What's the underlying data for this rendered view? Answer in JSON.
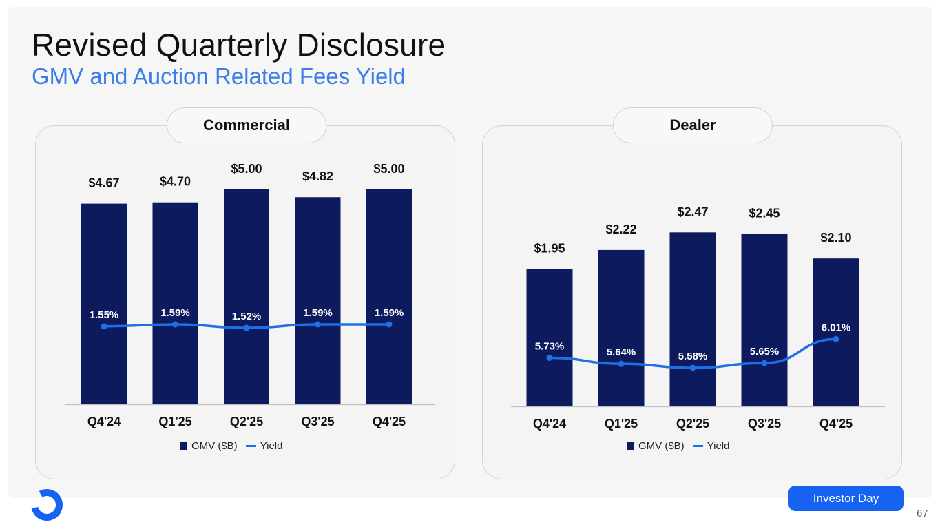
{
  "header": {
    "title": "Revised Quarterly Disclosure",
    "subtitle": "GMV and Auction Related Fees Yield"
  },
  "colors": {
    "bar": "#0d1b5e",
    "line": "#1f6fe5",
    "subtitle": "#3d7ee6",
    "badge": "#1663f2"
  },
  "legend": {
    "bar_label": "GMV ($B)",
    "line_label": "Yield"
  },
  "chart_data": [
    {
      "type": "bar",
      "title": "Commercial",
      "categories": [
        "Q4'24",
        "Q1'25",
        "Q2'25",
        "Q3'25",
        "Q4'25"
      ],
      "series": [
        {
          "name": "GMV ($B)",
          "type": "bar",
          "values": [
            4.67,
            4.7,
            5.0,
            4.82,
            5.0
          ],
          "labels": [
            "$4.67",
            "$4.70",
            "$5.00",
            "$4.82",
            "$5.00"
          ]
        },
        {
          "name": "Yield",
          "type": "line",
          "values": [
            1.55,
            1.59,
            1.52,
            1.59,
            1.59
          ],
          "labels": [
            "1.55%",
            "1.59%",
            "1.52%",
            "1.59%",
            "1.59%"
          ]
        }
      ]
    },
    {
      "type": "bar",
      "title": "Dealer",
      "categories": [
        "Q4'24",
        "Q1'25",
        "Q2'25",
        "Q3'25",
        "Q4'25"
      ],
      "series": [
        {
          "name": "GMV ($B)",
          "type": "bar",
          "values": [
            1.95,
            2.22,
            2.47,
            2.45,
            2.1
          ],
          "labels": [
            "$1.95",
            "$2.22",
            "$2.47",
            "$2.45",
            "$2.10"
          ]
        },
        {
          "name": "Yield",
          "type": "line",
          "values": [
            5.73,
            5.64,
            5.58,
            5.65,
            6.01
          ],
          "labels": [
            "5.73%",
            "5.64%",
            "5.58%",
            "5.65%",
            "6.01%"
          ]
        }
      ]
    }
  ],
  "footer": {
    "badge": "Investor Day",
    "page": "67",
    "logo_icon": "ring-logo-icon"
  }
}
